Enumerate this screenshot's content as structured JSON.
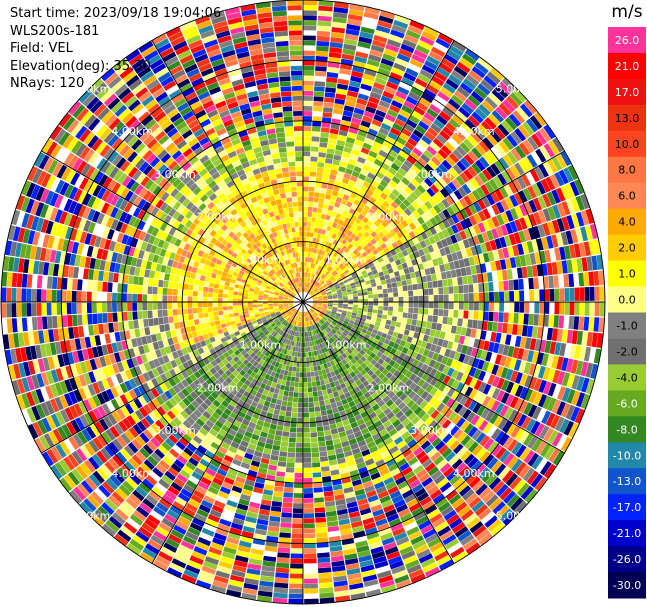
{
  "header": {
    "start_time": "Start time: 2023/09/18 19:04:06",
    "instrument": "WLS200s-181",
    "field": "Field: VEL",
    "elevation": "Elevation(deg): 35.30",
    "nrays": "NRays: 120"
  },
  "chart_data": {
    "type": "heatmap",
    "projection": "polar PPI",
    "title": "",
    "units": "m/s",
    "n_rays": 120,
    "max_range_km": 5.0,
    "range_rings_km": [
      1.0,
      2.0,
      3.0,
      4.0,
      5.0
    ],
    "ring_labels": [
      "1.00km",
      "2.00km",
      "3.00km",
      "4.00km",
      "5.00km"
    ],
    "colorbar": {
      "tick_labels": [
        "26.0",
        "21.0",
        "17.0",
        "13.0",
        "10.0",
        "8.0",
        "6.0",
        "4.0",
        "2.0",
        "1.0",
        "0.0",
        "-1.0",
        "-2.0",
        "-4.0",
        "-6.0",
        "-8.0",
        "-10.0",
        "-13.0",
        "-17.0",
        "-21.0",
        "-26.0",
        "-30.0"
      ],
      "colors_top_to_bottom": [
        "#ff3399",
        "#ff0000",
        "#ee1111",
        "#ee3311",
        "#ff4422",
        "#ff7744",
        "#ff8855",
        "#ffaa00",
        "#ffcc00",
        "#ffff00",
        "#ffff88",
        "#808080",
        "#707070",
        "#99cc33",
        "#66aa22",
        "#338822",
        "#2288aa",
        "#1155cc",
        "#0022ff",
        "#0000cc",
        "#000088",
        "#000055"
      ]
    },
    "velocity_pattern": {
      "near_range_northwest_sector": "0.0 to 4.0 m/s (yellow/orange)",
      "near_range_southeast_sector": "-1.0 to -6.0 m/s (green)",
      "near_range_west_east": "about 0.0 m/s (gray)",
      "beyond_about_3km": "noise spanning full -30.0 to 26.0 scale"
    }
  },
  "colors": {
    "ring_line": "#000000",
    "spoke_line": "#000000",
    "background": "#ffffff"
  }
}
